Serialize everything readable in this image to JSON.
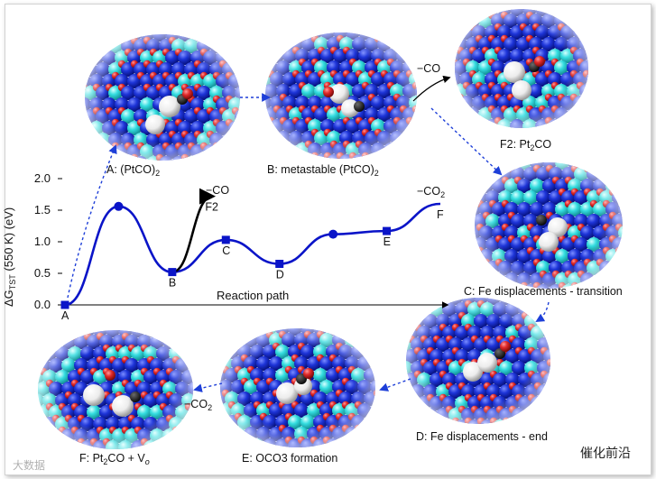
{
  "panels": [
    {
      "id": "A",
      "caption": "A: (PtCO)",
      "sub": "2"
    },
    {
      "id": "B",
      "caption": "B: metastable (PtCO)",
      "sub": "2"
    },
    {
      "id": "F2",
      "pre": "F2: Pt",
      "sub": "2",
      "post": "CO"
    },
    {
      "id": "C",
      "caption": "C: Fe displacements - transition"
    },
    {
      "id": "D",
      "caption": "D: Fe displacements - end"
    },
    {
      "id": "E",
      "caption": "E: OCO3 formation"
    },
    {
      "id": "F",
      "pre": "F: Pt",
      "sub": "2",
      "post": "CO + V",
      "post_sub": "o"
    }
  ],
  "arrows": {
    "minus_co": "−CO",
    "minus_co2": "−CO",
    "co2_sub": "2"
  },
  "chart_data": {
    "type": "line",
    "ylabel_pre": "ΔG",
    "ylabel_sub": "TST",
    "ylabel_post": " (550 K) (eV)",
    "xlabel": "Reaction path",
    "ylim": [
      0,
      2.0
    ],
    "yticks": [
      "0.0",
      "0.5",
      "1.0",
      "1.5",
      "2.0"
    ],
    "series": [
      {
        "color": "#0a14c8",
        "points": [
          {
            "x": 0,
            "y": 0.0,
            "label": "A"
          },
          {
            "x": 1,
            "y": 1.56,
            "label": ""
          },
          {
            "x": 2,
            "y": 0.52,
            "label": "B"
          },
          {
            "x": 3,
            "y": 1.03,
            "label": "C"
          },
          {
            "x": 4,
            "y": 0.65,
            "label": "D"
          },
          {
            "x": 5,
            "y": 1.12,
            "label": ""
          },
          {
            "x": 6,
            "y": 1.17,
            "label": "E"
          },
          {
            "x": 7,
            "y": 1.6,
            "label": "F"
          }
        ]
      },
      {
        "color": "#000000",
        "points": [
          {
            "x": 2,
            "y": 0.52
          },
          {
            "x": 2.75,
            "y": 1.72,
            "label": "F2"
          }
        ]
      }
    ],
    "annotations": [
      {
        "text": "−CO",
        "near": "F2"
      },
      {
        "text": "−CO",
        "sub": "2",
        "near": "F"
      }
    ]
  },
  "watermarks": {
    "left": "大数据",
    "right": "催化前沿"
  }
}
